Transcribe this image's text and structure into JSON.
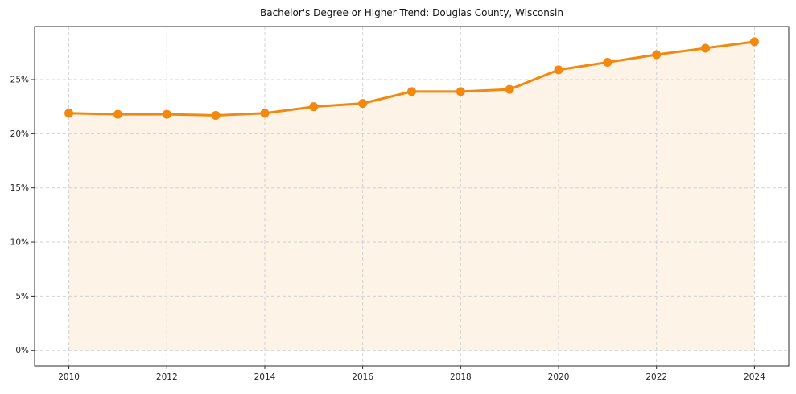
{
  "chart_data": {
    "type": "line",
    "title": "Bachelor's Degree or Higher Trend: Douglas County, Wisconsin",
    "x": [
      2010,
      2011,
      2012,
      2013,
      2014,
      2015,
      2016,
      2017,
      2018,
      2019,
      2020,
      2021,
      2022,
      2023,
      2024
    ],
    "series": [
      {
        "name": "Bachelor's Degree or Higher (%)",
        "values": [
          21.9,
          21.8,
          21.8,
          21.7,
          21.9,
          22.5,
          22.8,
          23.9,
          23.9,
          24.1,
          25.9,
          26.6,
          27.3,
          27.9,
          28.5
        ]
      }
    ],
    "xlabel": "",
    "ylabel": "",
    "xlim": [
      2009.3,
      2024.7
    ],
    "ylim": [
      -1.43,
      29.9
    ],
    "x_tick_values": [
      2010,
      2012,
      2014,
      2016,
      2018,
      2020,
      2022,
      2024
    ],
    "x_tick_labels": [
      "2010",
      "2012",
      "2014",
      "2016",
      "2018",
      "2020",
      "2022",
      "2024"
    ],
    "y_tick_values": [
      0,
      5,
      10,
      15,
      20,
      25
    ],
    "y_tick_labels": [
      "0%",
      "5%",
      "10%",
      "15%",
      "20%",
      "25%"
    ],
    "grid": "dashed, horizontal and vertical at labeled ticks",
    "legend": "none",
    "fill_to_zero": true,
    "line_color": "#f2880d",
    "marker_color": "#f2880d",
    "fill_color": "#fdf3e7",
    "grid_color": "#d2d2d2",
    "axis_color": "#2b2b2b",
    "tick_label_color": "#262626"
  }
}
